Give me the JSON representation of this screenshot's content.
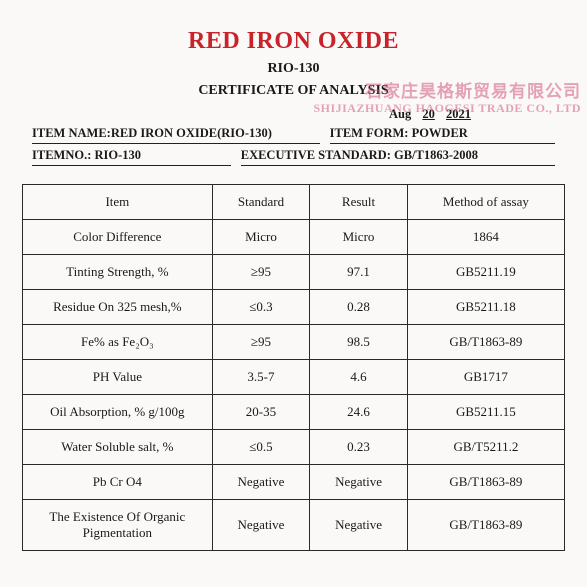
{
  "title": "RED IRON OXIDE",
  "subtitle": "RIO-130",
  "cert_line": "CERTIFICATE OF ANALYSIS",
  "watermark": {
    "cn": "石家庄昊格斯贸易有限公司",
    "en": "SHIJIAZHUANG HAOGESI TRADE CO., LTD"
  },
  "date": {
    "label": "Aug",
    "day": "20",
    "year": "2021"
  },
  "meta": {
    "item_name_label": "ITEM NAME:",
    "item_name_value": "RED IRON OXIDE(RIO-130)",
    "item_form_label": "ITEM FORM:",
    "item_form_value": " POWDER",
    "item_no_label": "ITEMNO.:",
    "item_no_value": " RIO-130",
    "exec_std_label": "EXECUTIVE STANDARD:",
    "exec_std_value": " GB/T1863-2008"
  },
  "table": {
    "columns": [
      "Item",
      "Standard",
      "Result",
      "Method of assay"
    ],
    "rows": [
      [
        "Color Difference",
        "Micro",
        "Micro",
        "1864"
      ],
      [
        "Tinting Strength, %",
        "≥95",
        "97.1",
        "GB5211.19"
      ],
      [
        "Residue On 325 mesh,%",
        "≤0.3",
        "0.28",
        "GB5211.18"
      ],
      [
        "Fe% as Fe₂O₃",
        "≥95",
        "98.5",
        "GB/T1863-89"
      ],
      [
        "PH Value",
        "3.5-7",
        "4.6",
        "GB1717"
      ],
      [
        "Oil Absorption, %   g/100g",
        "20-35",
        "24.6",
        "GB5211.15"
      ],
      [
        "Water Soluble salt, %",
        "≤0.5",
        "0.23",
        "GB/T5211.2"
      ],
      [
        "Pb      Cr      O4",
        "Negative",
        "Negative",
        "GB/T1863-89"
      ],
      [
        "The Existence Of Organic Pigmentation",
        "Negative",
        "Negative",
        "GB/T1863-89"
      ]
    ],
    "border_color": "#2a2a2a",
    "font_size": 13
  },
  "colors": {
    "title": "#c8232b",
    "page_bg": "#faf9f7",
    "watermark": "rgba(210,90,130,0.55)"
  }
}
